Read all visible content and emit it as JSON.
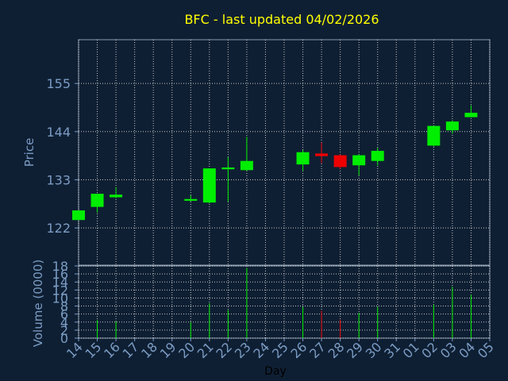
{
  "chart_data": [
    {
      "type": "candlestick",
      "title": "BFC - last updated 04/02/2026",
      "ylabel": "Price",
      "xlabel": "Day",
      "ylim": [
        113.5,
        165
      ],
      "yticks": [
        122,
        133,
        144,
        155
      ],
      "grid": true,
      "colors": {
        "up": "#00ee00",
        "down": "#ee0000",
        "title": "#ffff00",
        "axis_text": "#7b9cc4",
        "background": "#0f1f33",
        "grid": "#ffffff"
      },
      "x": [
        "14",
        "15",
        "16",
        "17",
        "18",
        "19",
        "20",
        "21",
        "22",
        "23",
        "24",
        "25",
        "26",
        "27",
        "28",
        "29",
        "30",
        "31",
        "01",
        "02",
        "03",
        "04",
        "05"
      ],
      "candles": [
        {
          "x": "14",
          "open": 123.8,
          "close": 126.0,
          "low": 123.8,
          "high": 126.0
        },
        {
          "x": "15",
          "open": 126.8,
          "close": 129.8,
          "low": 125.5,
          "high": 129.8
        },
        {
          "x": "16",
          "open": 129.0,
          "close": 129.6,
          "low": 128.8,
          "high": 131.3
        },
        {
          "x": "20",
          "open": 128.2,
          "close": 128.6,
          "low": 128.0,
          "high": 129.5
        },
        {
          "x": "21",
          "open": 127.8,
          "close": 135.6,
          "low": 127.6,
          "high": 135.6
        },
        {
          "x": "22",
          "open": 135.4,
          "close": 135.8,
          "low": 128.0,
          "high": 138.2
        },
        {
          "x": "23",
          "open": 135.2,
          "close": 137.3,
          "low": 135.0,
          "high": 142.8
        },
        {
          "x": "26",
          "open": 136.5,
          "close": 139.3,
          "low": 135.0,
          "high": 139.8
        },
        {
          "x": "27",
          "open": 139.0,
          "close": 138.4,
          "low": 136.8,
          "high": 141.5
        },
        {
          "x": "28",
          "open": 138.6,
          "close": 135.9,
          "low": 135.5,
          "high": 138.8
        },
        {
          "x": "29",
          "open": 136.3,
          "close": 138.6,
          "low": 134.0,
          "high": 138.8
        },
        {
          "x": "30",
          "open": 137.3,
          "close": 139.6,
          "low": 136.3,
          "high": 140.3
        },
        {
          "x": "02",
          "open": 140.8,
          "close": 145.3,
          "low": 140.6,
          "high": 145.3
        },
        {
          "x": "03",
          "open": 144.3,
          "close": 146.3,
          "low": 143.5,
          "high": 146.6
        },
        {
          "x": "04",
          "open": 147.3,
          "close": 148.3,
          "low": 147.3,
          "high": 150.0
        }
      ]
    },
    {
      "type": "bar",
      "ylabel": "Volume (0000)",
      "xlabel": "Day",
      "ylim": [
        0,
        18
      ],
      "yticks": [
        0,
        2,
        4,
        6,
        8,
        10,
        12,
        14,
        16,
        18
      ],
      "grid": true,
      "x": [
        "14",
        "15",
        "16",
        "17",
        "18",
        "19",
        "20",
        "21",
        "22",
        "23",
        "24",
        "25",
        "26",
        "27",
        "28",
        "29",
        "30",
        "31",
        "01",
        "02",
        "03",
        "04",
        "05"
      ],
      "bars": [
        {
          "x": "15",
          "value": 4.5,
          "color": "up"
        },
        {
          "x": "16",
          "value": 4.2,
          "color": "up"
        },
        {
          "x": "20",
          "value": 4.0,
          "color": "up"
        },
        {
          "x": "21",
          "value": 8.7,
          "color": "up"
        },
        {
          "x": "22",
          "value": 7.0,
          "color": "up"
        },
        {
          "x": "23",
          "value": 17.5,
          "color": "up"
        },
        {
          "x": "26",
          "value": 7.8,
          "color": "up"
        },
        {
          "x": "27",
          "value": 6.8,
          "color": "down"
        },
        {
          "x": "28",
          "value": 4.6,
          "color": "down"
        },
        {
          "x": "29",
          "value": 6.3,
          "color": "up"
        },
        {
          "x": "30",
          "value": 7.8,
          "color": "up"
        },
        {
          "x": "02",
          "value": 8.3,
          "color": "up"
        },
        {
          "x": "03",
          "value": 12.8,
          "color": "up"
        },
        {
          "x": "04",
          "value": 10.8,
          "color": "up"
        }
      ]
    }
  ]
}
